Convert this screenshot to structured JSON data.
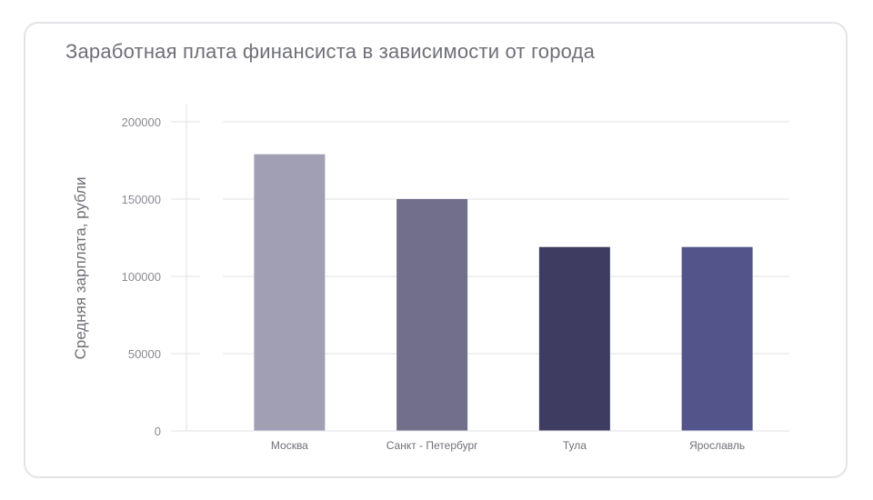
{
  "chart_data": {
    "type": "bar",
    "title": "Заработная плата финансиста в зависимости от города",
    "xlabel": "",
    "ylabel": "Средняя зарплата, рубли",
    "categories": [
      "Москва",
      "Санкт - Петербург",
      "Тула",
      "Ярославль"
    ],
    "values": [
      179000,
      150000,
      119000,
      119000
    ],
    "colors": [
      "#a09fb3",
      "#716f8b",
      "#3f3c61",
      "#52548a"
    ],
    "ylim": [
      0,
      200000
    ],
    "yticks": [
      0,
      50000,
      100000,
      150000,
      200000
    ],
    "grid": true,
    "legend": "none"
  }
}
